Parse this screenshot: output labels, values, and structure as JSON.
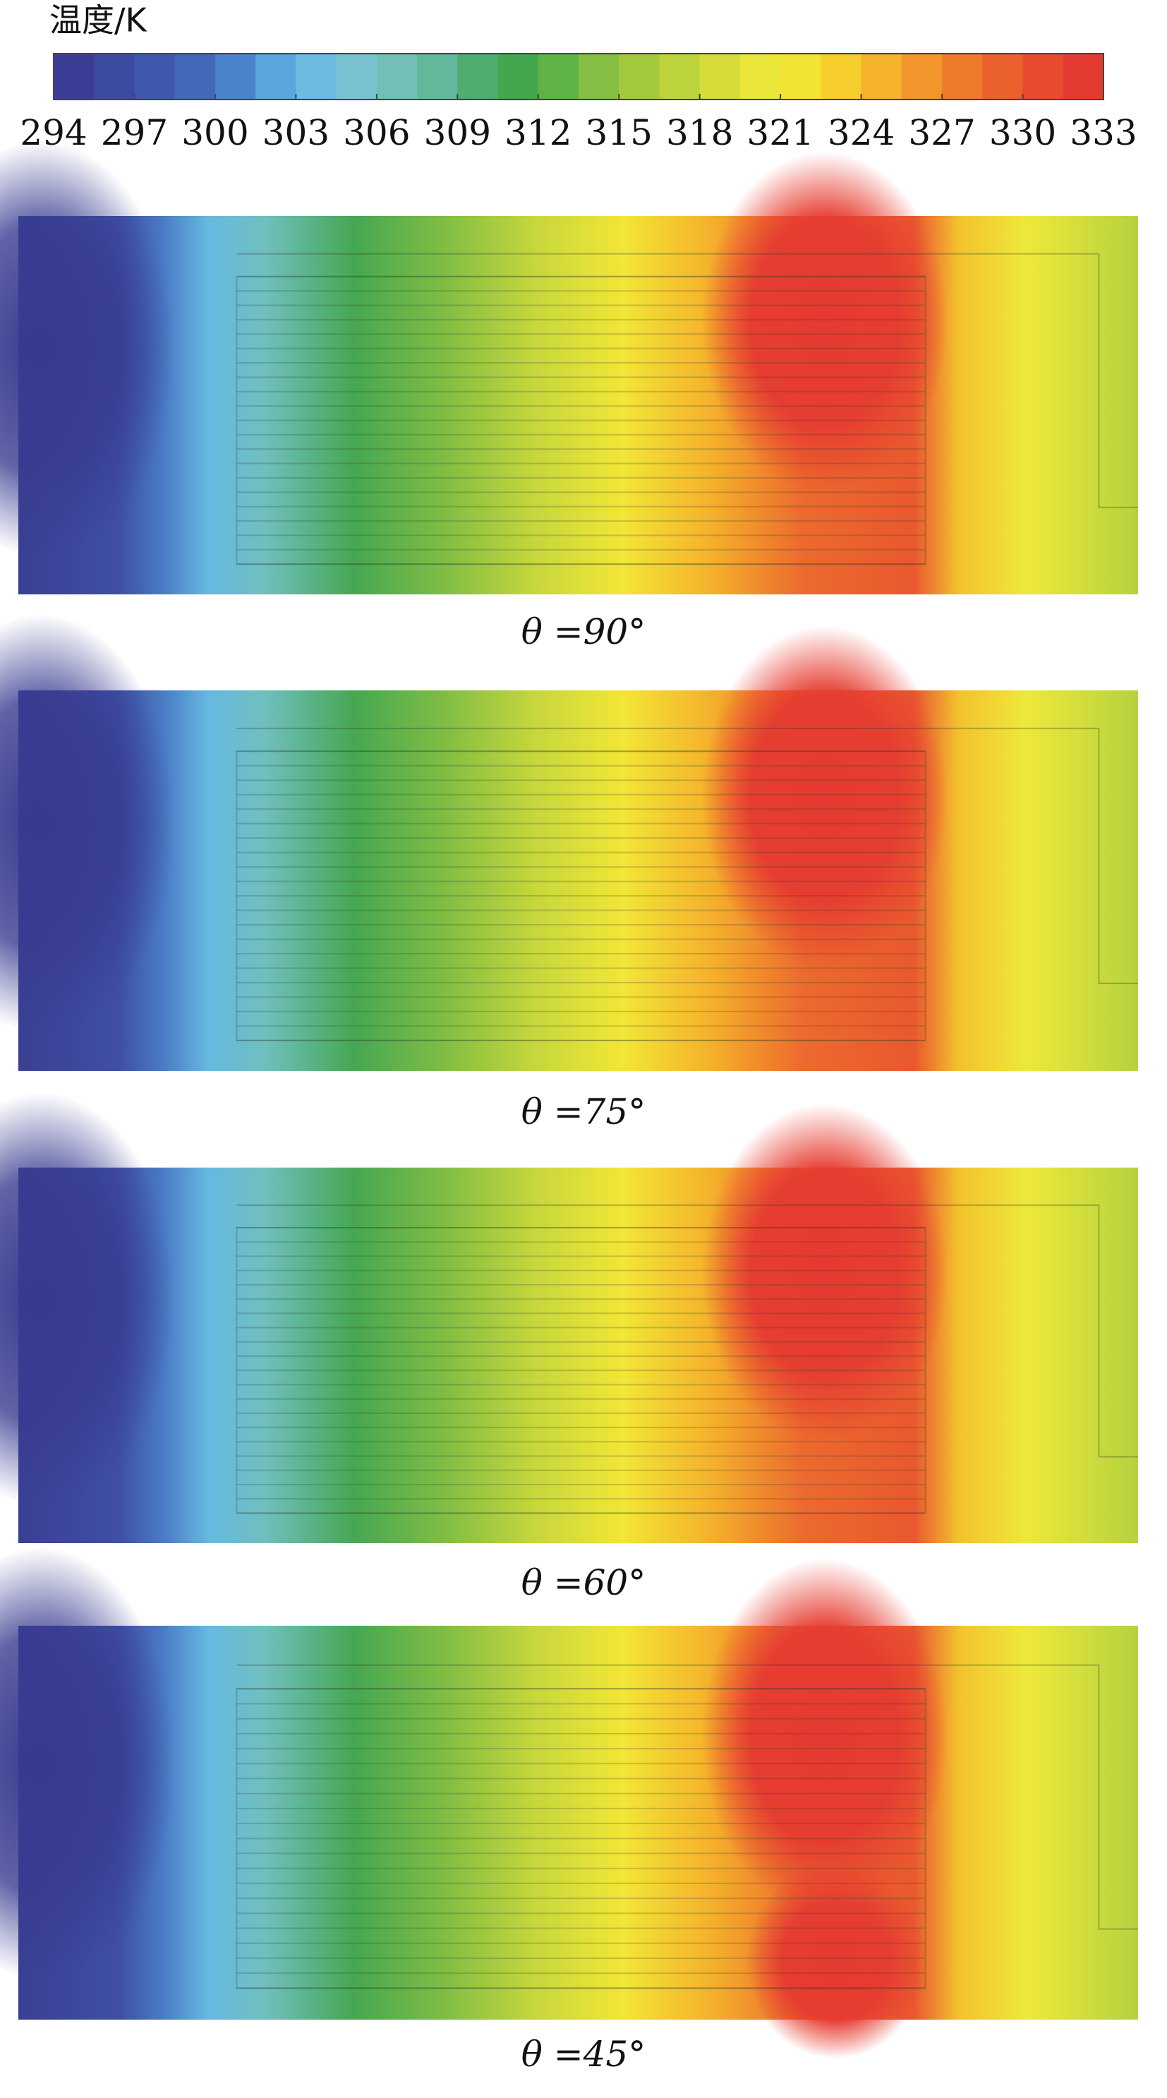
{
  "chart_data": {
    "type": "contour",
    "colorbar_label": "温度/K",
    "clim": [
      294,
      333
    ],
    "cticks": [
      294,
      297,
      300,
      303,
      306,
      309,
      312,
      315,
      318,
      321,
      324,
      327,
      330,
      333
    ],
    "colormap": [
      "#3a3f95",
      "#3c4aa0",
      "#3f58ad",
      "#4268b8",
      "#4a83c9",
      "#5aa6dc",
      "#6cbcdf",
      "#78c2d2",
      "#72bfb8",
      "#63b79a",
      "#50ad72",
      "#44a64e",
      "#5fb246",
      "#84bf43",
      "#a3c93f",
      "#bdd33c",
      "#d6dc3a",
      "#eae63a",
      "#f3e434",
      "#f7cf2c",
      "#f5b22b",
      "#f2952b",
      "#ee7a2c",
      "#eb612e",
      "#e84b2f",
      "#e53a31"
    ],
    "panels": [
      {
        "caption": "θ =90°"
      },
      {
        "caption": "θ =75°"
      },
      {
        "caption": "θ =60°"
      },
      {
        "caption": "θ =45°"
      }
    ]
  }
}
